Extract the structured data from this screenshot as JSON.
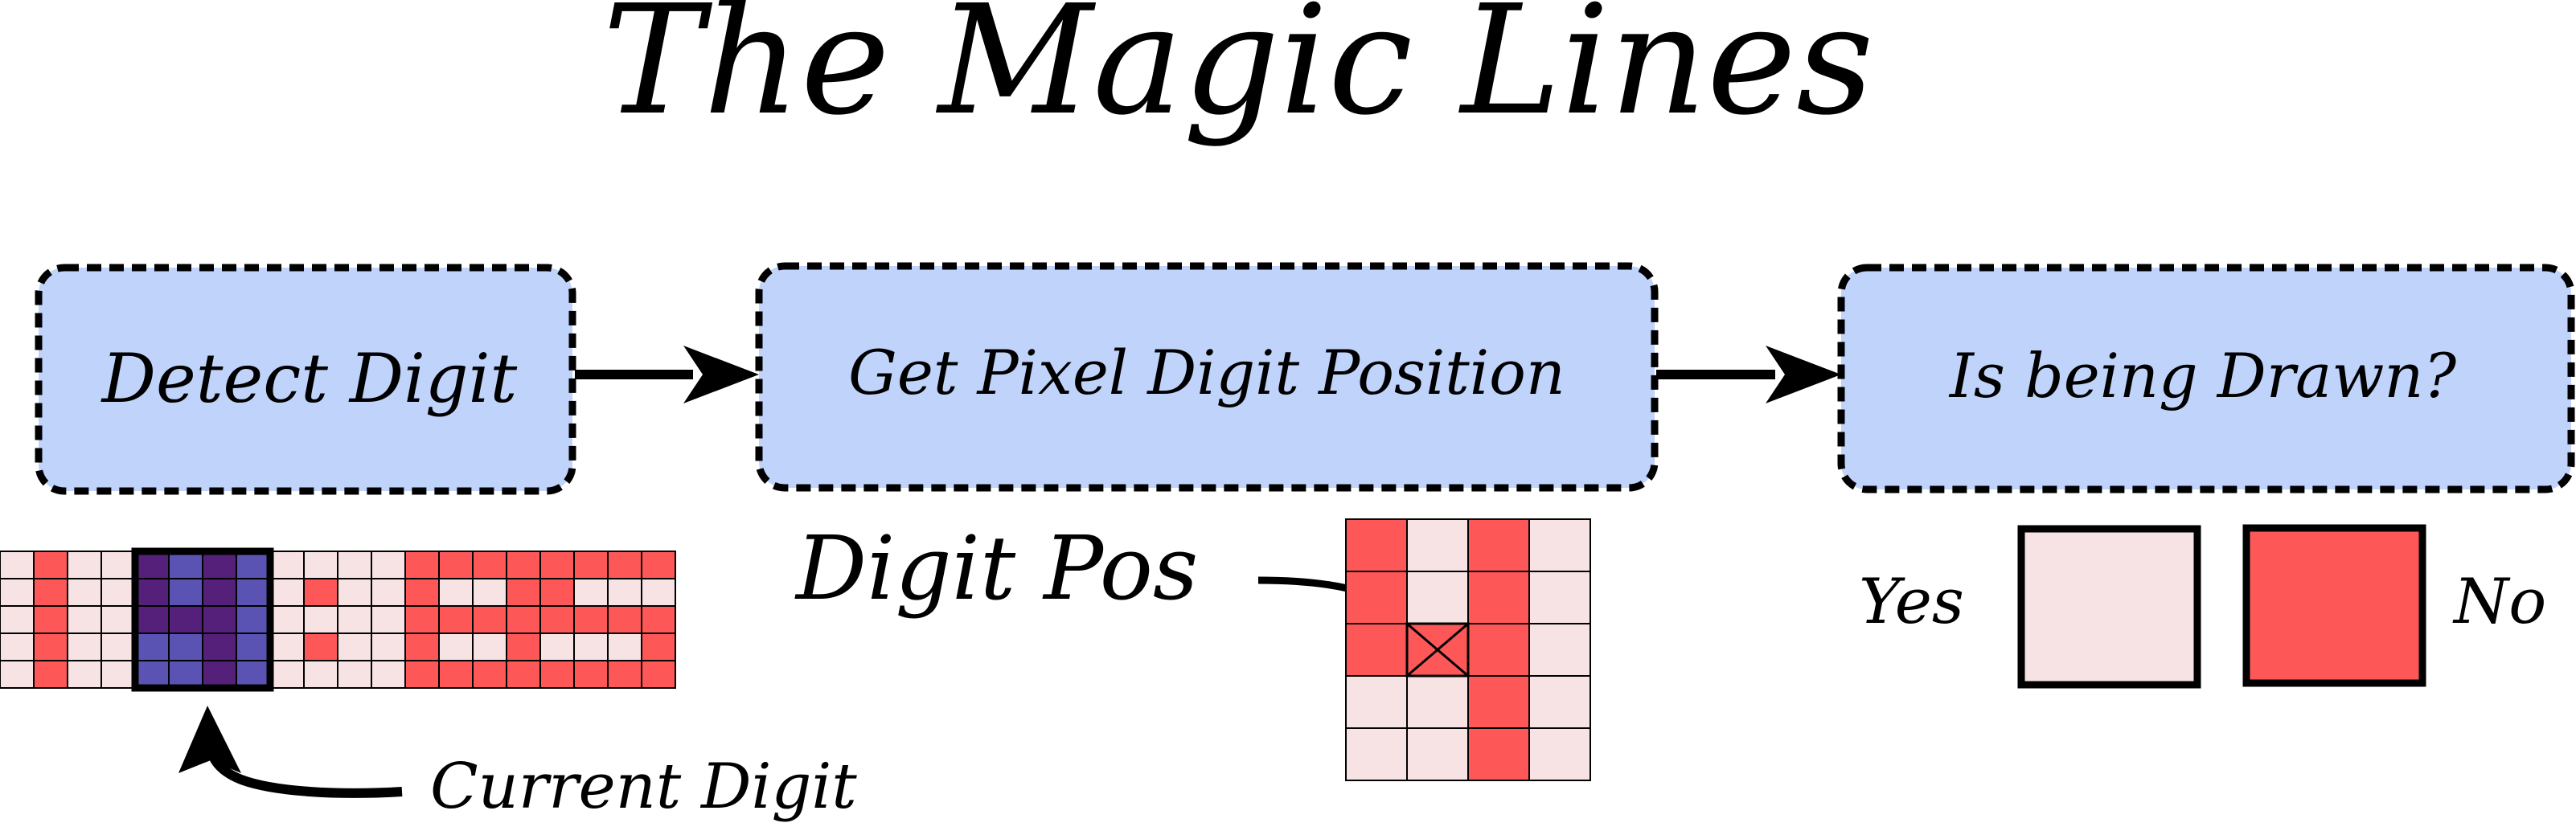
{
  "title": "The Magic Lines",
  "steps": [
    {
      "label": "Detect Digit"
    },
    {
      "label": "Get Pixel Digit Position"
    },
    {
      "label": "Is being Drawn?"
    }
  ],
  "annotations": {
    "current_digit": "Current Digit",
    "digit_pos": "Digit Pos",
    "yes": "Yes",
    "no": "No"
  },
  "colors": {
    "box_fill": "#c0d3fb",
    "pixel_on": "#fe5757",
    "pixel_off": "#f7e3e4",
    "highlight_on": "#54207a",
    "highlight_off": "#5b53b4"
  },
  "strip": {
    "rows": 5,
    "cols": 20,
    "highlight_cols": [
      4,
      5,
      6,
      7
    ],
    "on_cells": [
      [
        1,
        0
      ],
      [
        1,
        1
      ],
      [
        1,
        2
      ],
      [
        1,
        3
      ],
      [
        1,
        4
      ],
      [
        4,
        0
      ],
      [
        4,
        1
      ],
      [
        4,
        2
      ],
      [
        5,
        2
      ],
      [
        6,
        0
      ],
      [
        6,
        1
      ],
      [
        6,
        2
      ],
      [
        6,
        3
      ],
      [
        6,
        4
      ],
      [
        9,
        1
      ],
      [
        9,
        3
      ],
      [
        12,
        0
      ],
      [
        12,
        1
      ],
      [
        12,
        2
      ],
      [
        12,
        3
      ],
      [
        12,
        4
      ],
      [
        13,
        0
      ],
      [
        13,
        2
      ],
      [
        13,
        4
      ],
      [
        14,
        0
      ],
      [
        14,
        2
      ],
      [
        14,
        4
      ],
      [
        15,
        0
      ],
      [
        15,
        1
      ],
      [
        15,
        2
      ],
      [
        15,
        3
      ],
      [
        15,
        4
      ],
      [
        16,
        0
      ],
      [
        16,
        1
      ],
      [
        16,
        2
      ],
      [
        16,
        4
      ],
      [
        17,
        0
      ],
      [
        17,
        2
      ],
      [
        17,
        4
      ],
      [
        18,
        0
      ],
      [
        18,
        2
      ],
      [
        18,
        4
      ],
      [
        19,
        0
      ],
      [
        19,
        2
      ],
      [
        19,
        3
      ],
      [
        19,
        4
      ]
    ]
  },
  "digit_grid": {
    "rows": 5,
    "cols": 4,
    "on_cells": [
      [
        0,
        0
      ],
      [
        0,
        1
      ],
      [
        0,
        2
      ],
      [
        1,
        2
      ],
      [
        2,
        0
      ],
      [
        2,
        1
      ],
      [
        2,
        2
      ],
      [
        2,
        3
      ],
      [
        2,
        4
      ]
    ],
    "marked_cell": [
      1,
      2
    ]
  }
}
